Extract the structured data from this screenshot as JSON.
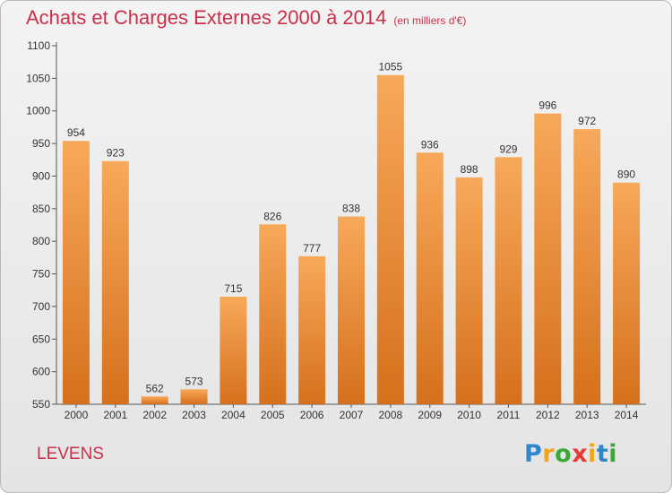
{
  "title": "Achats et Charges Externes 2000 à 2014",
  "unit": "(en milliers d'€)",
  "commune": "LEVENS",
  "logo": {
    "text": "Proxiti",
    "letters": [
      "P",
      "r",
      "o",
      "x",
      "i",
      "t",
      "i"
    ],
    "colors": [
      "#2f86c8",
      "#f0a51d",
      "#39a935",
      "#e63b2e",
      "#f0a51d",
      "#2f86c8",
      "#39a935"
    ]
  },
  "colors": {
    "bar_light": "#f7a95a",
    "bar_dark": "#d6701c",
    "title": "#cc2f4a",
    "axis": "#555555"
  },
  "chart_data": {
    "type": "bar",
    "categories": [
      "2000",
      "2001",
      "2002",
      "2003",
      "2004",
      "2005",
      "2006",
      "2007",
      "2008",
      "2009",
      "2010",
      "2011",
      "2012",
      "2013",
      "2014"
    ],
    "values": [
      954,
      923,
      562,
      573,
      715,
      826,
      777,
      838,
      1055,
      936,
      898,
      929,
      996,
      972,
      890
    ],
    "ylim": [
      550,
      1100
    ],
    "yticks": [
      550,
      600,
      650,
      700,
      750,
      800,
      850,
      900,
      950,
      1000,
      1050,
      1100
    ],
    "grid": false,
    "xlabel": "",
    "ylabel": ""
  }
}
